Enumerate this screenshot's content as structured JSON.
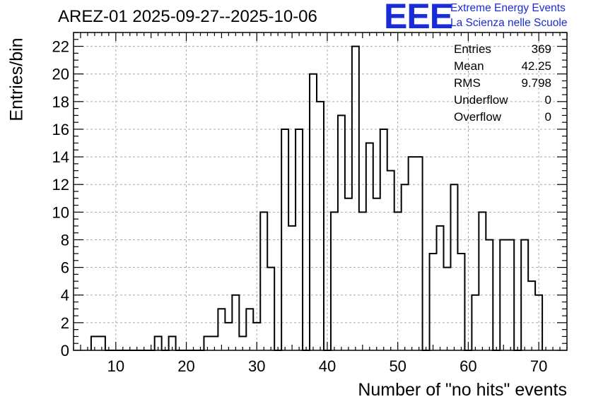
{
  "title": "AREZ-01 2025-09-27--2025-10-06",
  "logo": {
    "mark": "EEE",
    "line1": "Extreme Energy Events",
    "line2": "La Scienza nelle Scuole",
    "color": "#1a2bd8"
  },
  "stats": [
    {
      "label": "Entries",
      "value": "369"
    },
    {
      "label": "Mean",
      "value": "42.25"
    },
    {
      "label": "RMS",
      "value": "9.798"
    },
    {
      "label": "Underflow",
      "value": "0"
    },
    {
      "label": "Overflow",
      "value": "0"
    }
  ],
  "chart_data": {
    "type": "bar",
    "xlabel": "Number of \"no hits\" events",
    "ylabel": "Entries/bin",
    "xlim": [
      4,
      74
    ],
    "ylim": [
      0,
      23
    ],
    "grid": true,
    "xticks": [
      10,
      20,
      30,
      40,
      50,
      60,
      70
    ],
    "yticks": [
      0,
      2,
      4,
      6,
      8,
      10,
      12,
      14,
      16,
      18,
      20,
      22
    ],
    "bin_width": 1,
    "bins": [
      {
        "x": 7,
        "y": 1
      },
      {
        "x": 8,
        "y": 1
      },
      {
        "x": 16,
        "y": 1
      },
      {
        "x": 18,
        "y": 1
      },
      {
        "x": 23,
        "y": 1
      },
      {
        "x": 24,
        "y": 1
      },
      {
        "x": 25,
        "y": 3
      },
      {
        "x": 26,
        "y": 2
      },
      {
        "x": 27,
        "y": 4
      },
      {
        "x": 28,
        "y": 1
      },
      {
        "x": 29,
        "y": 3
      },
      {
        "x": 30,
        "y": 2
      },
      {
        "x": 31,
        "y": 10
      },
      {
        "x": 32,
        "y": 6
      },
      {
        "x": 33,
        "y": 0
      },
      {
        "x": 34,
        "y": 16
      },
      {
        "x": 35,
        "y": 9
      },
      {
        "x": 36,
        "y": 16
      },
      {
        "x": 37,
        "y": 0
      },
      {
        "x": 38,
        "y": 20
      },
      {
        "x": 39,
        "y": 18
      },
      {
        "x": 40,
        "y": 0
      },
      {
        "x": 41,
        "y": 10
      },
      {
        "x": 42,
        "y": 17
      },
      {
        "x": 43,
        "y": 11
      },
      {
        "x": 44,
        "y": 22
      },
      {
        "x": 45,
        "y": 10
      },
      {
        "x": 46,
        "y": 15
      },
      {
        "x": 47,
        "y": 11
      },
      {
        "x": 48,
        "y": 16
      },
      {
        "x": 49,
        "y": 13
      },
      {
        "x": 50,
        "y": 10
      },
      {
        "x": 51,
        "y": 12
      },
      {
        "x": 52,
        "y": 14
      },
      {
        "x": 53,
        "y": 14
      },
      {
        "x": 54,
        "y": 0
      },
      {
        "x": 55,
        "y": 7
      },
      {
        "x": 56,
        "y": 9
      },
      {
        "x": 57,
        "y": 6
      },
      {
        "x": 58,
        "y": 12
      },
      {
        "x": 59,
        "y": 7
      },
      {
        "x": 60,
        "y": 0
      },
      {
        "x": 61,
        "y": 4
      },
      {
        "x": 62,
        "y": 10
      },
      {
        "x": 63,
        "y": 8
      },
      {
        "x": 64,
        "y": 0
      },
      {
        "x": 65,
        "y": 8
      },
      {
        "x": 66,
        "y": 8
      },
      {
        "x": 67,
        "y": 0
      },
      {
        "x": 68,
        "y": 8
      },
      {
        "x": 69,
        "y": 5
      },
      {
        "x": 70,
        "y": 4
      }
    ]
  }
}
